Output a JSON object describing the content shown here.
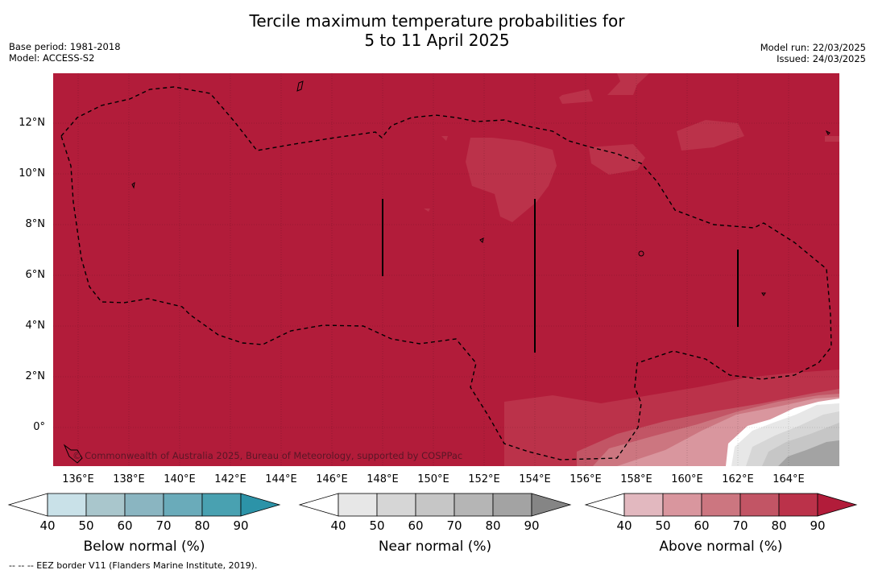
{
  "header": {
    "title_line1": "Tercile maximum temperature probabilities for",
    "title_line2": "5 to 11 April 2025",
    "base_period": "Base period: 1981-2018",
    "model": "Model: ACCESS-S2",
    "model_run": "Model run: 22/03/2025",
    "issued": "Issued: 24/03/2025"
  },
  "map": {
    "latitude_labels": [
      "12°N",
      "10°N",
      "8°N",
      "6°N",
      "4°N",
      "2°N",
      "0°"
    ],
    "longitude_labels": [
      "136°E",
      "138°E",
      "140°E",
      "142°E",
      "144°E",
      "146°E",
      "148°E",
      "150°E",
      "152°E",
      "154°E",
      "156°E",
      "158°E",
      "160°E",
      "162°E",
      "164°E"
    ],
    "copyright": "© Commonwealth of Australia 2025, Bureau of Meteorology, supported by COSPPac",
    "dominant_category": "Above normal 80-90%"
  },
  "colorbars": [
    {
      "title": "Below normal (%)",
      "ticks": [
        "40",
        "50",
        "60",
        "70",
        "80",
        "90"
      ],
      "colors": [
        "#ffffff",
        "#c9e1e8",
        "#a9c6cc",
        "#8ab5c1",
        "#6aabba",
        "#49a1b1",
        "#2c93a8"
      ]
    },
    {
      "title": "Near normal (%)",
      "ticks": [
        "40",
        "50",
        "60",
        "70",
        "80",
        "90"
      ],
      "colors": [
        "#ffffff",
        "#e7e7e7",
        "#d6d6d6",
        "#c6c6c6",
        "#b5b5b5",
        "#a3a3a3",
        "#858585"
      ]
    },
    {
      "title": "Above normal (%)",
      "ticks": [
        "40",
        "50",
        "60",
        "70",
        "80",
        "90"
      ],
      "colors": [
        "#ffffff",
        "#e2b8bf",
        "#d9969e",
        "#cc7680",
        "#c25565",
        "#bb324a",
        "#b21c3a"
      ]
    }
  ],
  "footnote": "--  --  -- EEZ border V11 (Flanders Marine Institute, 2019)."
}
